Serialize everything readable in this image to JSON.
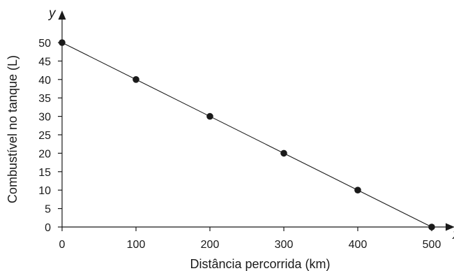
{
  "chart_data": {
    "type": "scatter",
    "title": "",
    "xlabel": "Distância percorrida (km)",
    "ylabel": "Combustível no tanque (L)",
    "x_axis_letter": "x",
    "y_axis_letter": "y",
    "xlim": [
      0,
      500
    ],
    "ylim": [
      0,
      50
    ],
    "x_ticks": [
      "0",
      "100",
      "200",
      "300",
      "400",
      "500"
    ],
    "y_ticks": [
      "0",
      "5",
      "10",
      "15",
      "20",
      "25",
      "30",
      "35",
      "40",
      "45",
      "50"
    ],
    "grid": false,
    "trend_line": {
      "from": [
        0,
        50
      ],
      "to": [
        500,
        0
      ]
    },
    "series": [
      {
        "points": [
          {
            "x": 0,
            "y": 50
          },
          {
            "x": 100,
            "y": 40
          },
          {
            "x": 200,
            "y": 30
          },
          {
            "x": 300,
            "y": 20
          },
          {
            "x": 400,
            "y": 10
          },
          {
            "x": 500,
            "y": 0
          }
        ]
      }
    ],
    "colors": {
      "axis": "#1a1a1a",
      "point": "#1a1a1a",
      "line": "#1a1a1a"
    }
  }
}
